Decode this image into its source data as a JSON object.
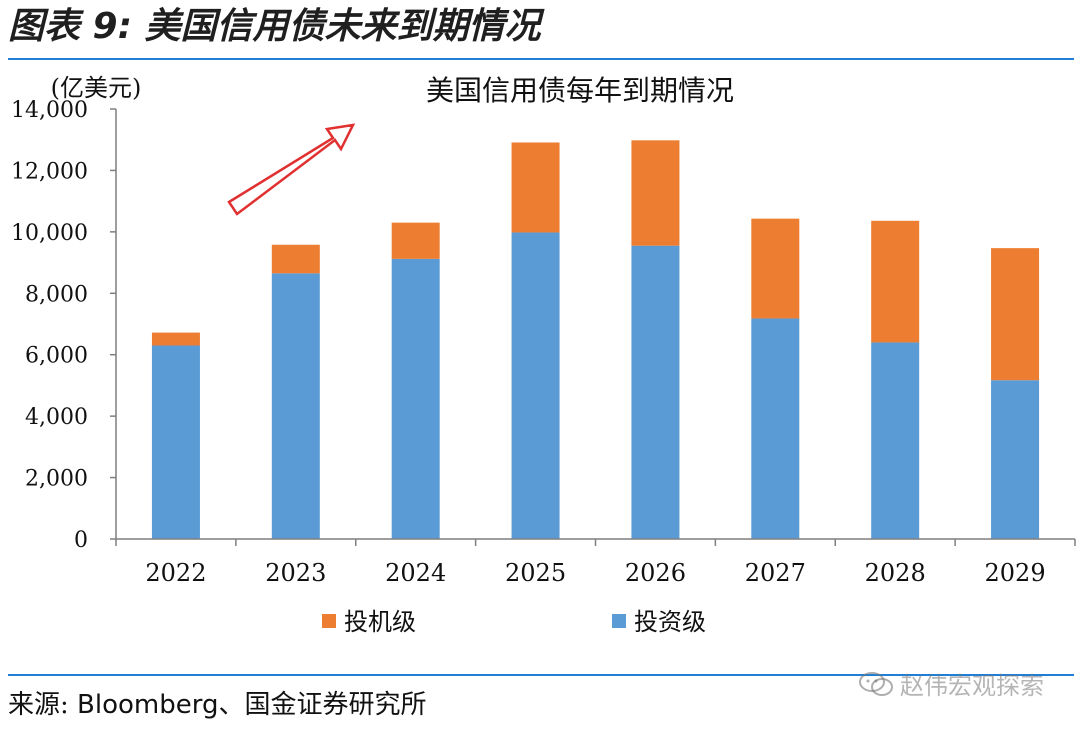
{
  "figure": {
    "title": "图表 9:  美国信用债未来到期情况",
    "source_label": "来源:",
    "source_text": " Bloomberg、国金证券研究所",
    "watermark": "赵伟宏观探索",
    "watermark_icon": "wechat-icon"
  },
  "chart_data": {
    "type": "bar",
    "stacked": true,
    "title": "美国信用债每年到期情况",
    "unit_label": "(亿美元)",
    "categories": [
      "2022",
      "2023",
      "2024",
      "2025",
      "2026",
      "2027",
      "2028",
      "2029"
    ],
    "series": [
      {
        "name": "投资级",
        "color": "#5b9bd5",
        "values": [
          6300,
          8650,
          9120,
          9980,
          9550,
          7180,
          6400,
          5170
        ]
      },
      {
        "name": "投机级",
        "color": "#ed7d31",
        "values": [
          420,
          930,
          1180,
          2930,
          3430,
          3250,
          3960,
          4300
        ]
      }
    ],
    "legend_order": [
      "投机级",
      "投资级"
    ],
    "ylim": [
      0,
      14000
    ],
    "yticks": [
      0,
      2000,
      4000,
      6000,
      8000,
      10000,
      12000,
      14000
    ],
    "ytick_labels": [
      "0",
      "2,000",
      "4,000",
      "6,000",
      "8,000",
      "10,000",
      "12,000",
      "14,000"
    ],
    "grid": false,
    "legend_position": "bottom",
    "annotation": "red-arrow-up-right"
  }
}
